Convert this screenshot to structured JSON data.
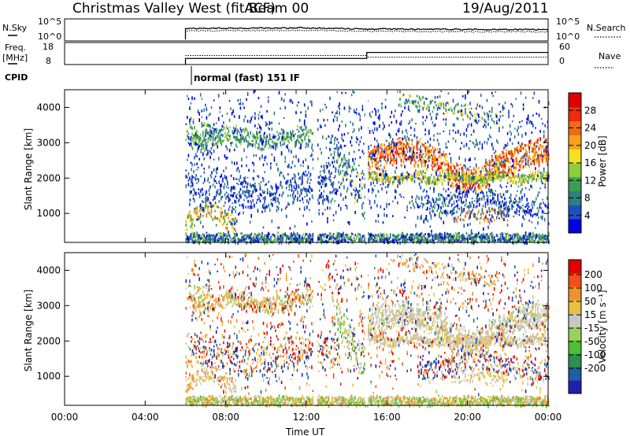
{
  "header": {
    "station": "Christmas Valley West (fitACF)",
    "beam": "Beam 00",
    "date": "19/Aug/2011"
  },
  "strip": {
    "nsky_label": "N.Sky",
    "nsky_ticks": [
      "10^5",
      "10^0"
    ],
    "nsearch_label": "N.Search",
    "nsearch_ticks": [
      "10^5",
      "10^0"
    ],
    "freq_label_1": "Freq.",
    "freq_label_2": "[MHz]",
    "freq_ticks": [
      "18",
      "8"
    ],
    "nave_label": "Nave",
    "nave_ticks": [
      "60",
      "0"
    ],
    "cpid_label": "CPID",
    "cpid_text": "normal (fast) 151 IF"
  },
  "colors": {
    "power_scale": [
      "#0000e0",
      "#1f4fbf",
      "#2f7f7f",
      "#3aa050",
      "#8fce3a",
      "#f7e020",
      "#f5a21a",
      "#f06a12",
      "#ee2a10",
      "#dd0000"
    ],
    "velocity_scale": [
      "#2020b0",
      "#1f5f9f",
      "#2f8f4f",
      "#4fbf2f",
      "#9ad060",
      "#c8c8c0",
      "#e8c040",
      "#f09030",
      "#f05018",
      "#e00000"
    ]
  },
  "chart_data": [
    {
      "type": "line",
      "panel": "sky and search noise",
      "ylabel": "N.Sky",
      "ylabel_right": "N.Search",
      "scale": "log",
      "yticks": [
        "10^5",
        "10^0"
      ],
      "x": [
        "00:00",
        "06:00",
        "08:00",
        "12:00",
        "15:00",
        "20:00",
        "24:00"
      ],
      "series": [
        {
          "name": "N.Sky",
          "values": [
            null,
            2000,
            2500,
            3000,
            1200,
            900,
            800
          ]
        },
        {
          "name": "N.Search",
          "values": [
            null,
            1000,
            1200,
            1500,
            700,
            500,
            500
          ]
        }
      ]
    },
    {
      "type": "line",
      "panel": "frequency and averages",
      "ylabel": "Freq. [MHz]",
      "ylabel_right": "Nave",
      "yticks": [
        8,
        18
      ],
      "yticks_right": [
        0,
        60
      ],
      "x": [
        "00:00",
        "06:00",
        "15:00",
        "24:00"
      ],
      "series": [
        {
          "name": "Freq.",
          "values": [
            null,
            10.5,
            14.5,
            14.5
          ]
        },
        {
          "name": "Nave",
          "values": [
            null,
            27,
            20,
            20
          ]
        }
      ]
    },
    {
      "type": "heatmap",
      "panel": "power",
      "xlabel": "",
      "ylabel": "Slant Range [km]",
      "colorbar_label": "Power [dB]",
      "colorbar_ticks": [
        4,
        8,
        12,
        16,
        20,
        24,
        28
      ],
      "xlim": [
        0,
        24
      ],
      "ylim": [
        180,
        4500
      ],
      "yticks": [
        1000,
        2000,
        3000,
        4000
      ],
      "xticks": [
        "00:00",
        "04:00",
        "08:00",
        "12:00",
        "16:00",
        "20:00",
        "00:00"
      ],
      "data_start_ut": 6
    },
    {
      "type": "heatmap",
      "panel": "velocity",
      "xlabel": "Time UT",
      "ylabel": "Slant Range [km]",
      "colorbar_label": "Velocity [m s⁻¹]",
      "colorbar_ticks": [
        200,
        100,
        50,
        15,
        -15,
        -50,
        -100,
        -200
      ],
      "xlim": [
        0,
        24
      ],
      "ylim": [
        180,
        4500
      ],
      "yticks": [
        1000,
        2000,
        3000,
        4000
      ],
      "xticks": [
        "00:00",
        "04:00",
        "08:00",
        "12:00",
        "16:00",
        "20:00",
        "00:00"
      ],
      "data_start_ut": 6
    }
  ]
}
